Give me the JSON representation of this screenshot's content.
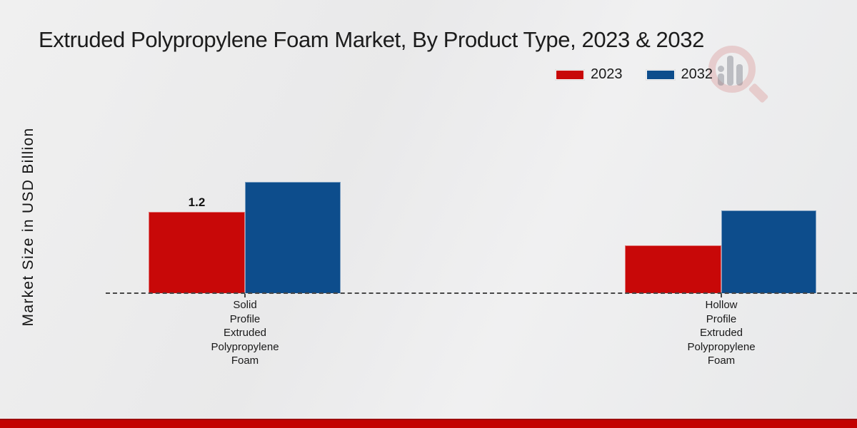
{
  "title": "Extruded Polypropylene Foam Market, By Product Type, 2023 & 2032",
  "y_axis_label": "Market Size in USD Billion",
  "icons": {
    "watermark": "magnifier-bar-chart-logo"
  },
  "colors": {
    "series_2023": "#c80808",
    "series_2032": "#0d4d8c",
    "footer_accent": "#c30101",
    "baseline": "#474747",
    "background": "#eaeaeb"
  },
  "chart_data": {
    "type": "bar",
    "title": "Extruded Polypropylene Foam Market, By Product Type, 2023 & 2032",
    "ylabel": "Market Size in USD Billion",
    "xlabel": "",
    "categories": [
      "Solid Profile Extruded Polypropylene Foam",
      "Hollow Profile Extruded Polypropylene Foam"
    ],
    "categories_display": [
      "Solid\nProfile\nExtruded\nPolypropylene\nFoam",
      "Hollow\nProfile\nExtruded\nPolypropylene\nFoam"
    ],
    "series": [
      {
        "name": "2023",
        "color": "#c80808",
        "values": [
          1.2,
          0.7
        ]
      },
      {
        "name": "2032",
        "color": "#0d4d8c",
        "values": [
          1.64,
          1.22
        ]
      }
    ],
    "data_labels": [
      {
        "series": "2023",
        "category_index": 0,
        "text": "1.2"
      }
    ],
    "ylim": [
      0,
      2.9
    ],
    "grid": false,
    "baseline_style": "dashed",
    "legend_position": "top-right"
  }
}
